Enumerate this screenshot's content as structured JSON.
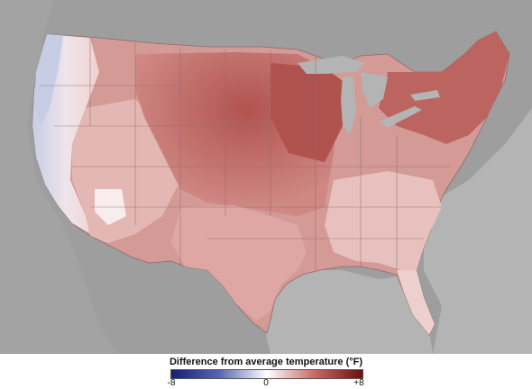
{
  "legend": {
    "title": "Difference from average temperature (°F)",
    "min_label": "-8",
    "mid_label": "0",
    "max_label": "+8",
    "range": [
      -8,
      8
    ],
    "colors": {
      "cold": "#1a237e",
      "neutral": "#ffffff",
      "warm": "#6d0f0f"
    }
  },
  "map": {
    "colors": {
      "land_outside": "#9e9e9e",
      "water": "#bdbdbd",
      "border": "#7a5050",
      "west_coast_cool": "#c9cfe6",
      "deep_warm": "#b25a57",
      "mid_warm": "#cf8a86",
      "light_warm": "#e7b9b5",
      "pale_warm": "#f3dcda"
    }
  }
}
